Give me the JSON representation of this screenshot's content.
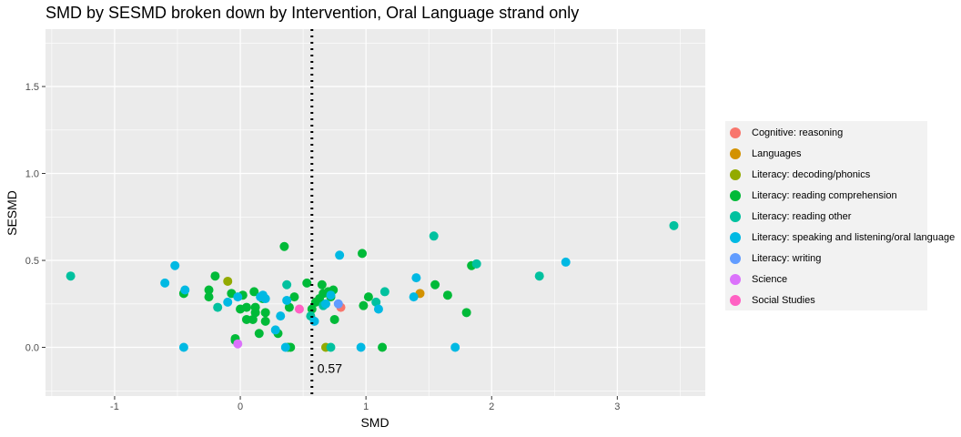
{
  "chart_data": {
    "type": "scatter",
    "title": "SMD by SESMD broken down by Intervention, Oral Language strand only",
    "xlabel": "SMD",
    "ylabel": "SESMD",
    "xlim": [
      -1.55,
      3.7
    ],
    "ylim": [
      -0.28,
      1.83
    ],
    "x_ticks": [
      -1,
      0,
      1,
      2,
      3
    ],
    "y_ticks": [
      0.0,
      0.5,
      1.0,
      1.5
    ],
    "x_tick_labels": [
      "-1",
      "0",
      "1",
      "2",
      "3"
    ],
    "y_tick_labels": [
      "0.0",
      "0.5",
      "1.0",
      "1.5"
    ],
    "grid": true,
    "legend_position": "right",
    "reference_line": {
      "x": 0.57,
      "label": "0.57",
      "style": "dotted"
    },
    "series": [
      {
        "name": "Cognitive: reasoning",
        "color": "#F8766D",
        "points": [
          [
            0.8,
            0.23
          ]
        ]
      },
      {
        "name": "Languages",
        "color": "#D39200",
        "points": [
          [
            1.43,
            0.31
          ]
        ]
      },
      {
        "name": "Literacy: decoding/phonics",
        "color": "#93AA00",
        "points": [
          [
            -0.1,
            0.38
          ],
          [
            0.68,
            0.0
          ]
        ]
      },
      {
        "name": "Literacy: reading comprehension",
        "color": "#00BA38",
        "points": [
          [
            -0.45,
            0.31
          ],
          [
            -0.25,
            0.33
          ],
          [
            -0.25,
            0.29
          ],
          [
            -0.2,
            0.41
          ],
          [
            -0.07,
            0.31
          ],
          [
            -0.04,
            0.05
          ],
          [
            -0.04,
            0.04
          ],
          [
            0.0,
            0.22
          ],
          [
            0.02,
            0.3
          ],
          [
            0.05,
            0.23
          ],
          [
            0.05,
            0.16
          ],
          [
            0.1,
            0.16
          ],
          [
            0.11,
            0.32
          ],
          [
            0.12,
            0.23
          ],
          [
            0.12,
            0.2
          ],
          [
            0.15,
            0.08
          ],
          [
            0.18,
            0.28
          ],
          [
            0.2,
            0.2
          ],
          [
            0.2,
            0.15
          ],
          [
            0.3,
            0.08
          ],
          [
            0.35,
            0.58
          ],
          [
            0.38,
            0.0
          ],
          [
            0.4,
            0.0
          ],
          [
            0.39,
            0.23
          ],
          [
            0.43,
            0.29
          ],
          [
            0.53,
            0.37
          ],
          [
            0.57,
            0.22
          ],
          [
            0.6,
            0.26
          ],
          [
            0.63,
            0.28
          ],
          [
            0.65,
            0.36
          ],
          [
            0.66,
            0.31
          ],
          [
            0.7,
            0.32
          ],
          [
            0.72,
            0.29
          ],
          [
            0.74,
            0.33
          ],
          [
            0.75,
            0.16
          ],
          [
            0.97,
            0.54
          ],
          [
            0.98,
            0.24
          ],
          [
            1.02,
            0.29
          ],
          [
            1.13,
            0.0
          ],
          [
            1.55,
            0.36
          ],
          [
            1.65,
            0.3
          ],
          [
            1.8,
            0.2
          ],
          [
            1.84,
            0.47
          ]
        ]
      },
      {
        "name": "Literacy: reading other",
        "color": "#00C19F",
        "points": [
          [
            -1.35,
            0.41
          ],
          [
            -0.18,
            0.23
          ],
          [
            0.37,
            0.36
          ],
          [
            0.56,
            0.18
          ],
          [
            0.66,
            0.24
          ],
          [
            0.72,
            0.0
          ],
          [
            1.08,
            0.26
          ],
          [
            1.15,
            0.32
          ],
          [
            1.54,
            0.64
          ],
          [
            1.88,
            0.48
          ],
          [
            2.38,
            0.41
          ],
          [
            3.45,
            0.7
          ]
        ]
      },
      {
        "name": "Literacy: speaking and listening/oral language",
        "color": "#00B9E3",
        "points": [
          [
            -0.6,
            0.37
          ],
          [
            -0.52,
            0.47
          ],
          [
            -0.44,
            0.33
          ],
          [
            -0.45,
            0.0
          ],
          [
            -0.1,
            0.26
          ],
          [
            -0.02,
            0.29
          ],
          [
            0.16,
            0.29
          ],
          [
            0.18,
            0.3
          ],
          [
            0.2,
            0.28
          ],
          [
            0.28,
            0.1
          ],
          [
            0.32,
            0.18
          ],
          [
            0.36,
            0.0
          ],
          [
            0.37,
            0.27
          ],
          [
            0.59,
            0.15
          ],
          [
            0.68,
            0.25
          ],
          [
            0.72,
            0.3
          ],
          [
            0.79,
            0.53
          ],
          [
            0.96,
            0.0
          ],
          [
            1.1,
            0.22
          ],
          [
            1.38,
            0.29
          ],
          [
            1.4,
            0.4
          ],
          [
            1.71,
            0.0
          ],
          [
            2.59,
            0.49
          ]
        ]
      },
      {
        "name": "Literacy: writing",
        "color": "#619CFF",
        "points": [
          [
            0.78,
            0.25
          ]
        ]
      },
      {
        "name": "Science",
        "color": "#DB72FB",
        "points": [
          [
            -0.02,
            0.02
          ]
        ]
      },
      {
        "name": "Social Studies",
        "color": "#FF61C3",
        "points": [
          [
            0.47,
            0.22
          ]
        ]
      }
    ]
  }
}
